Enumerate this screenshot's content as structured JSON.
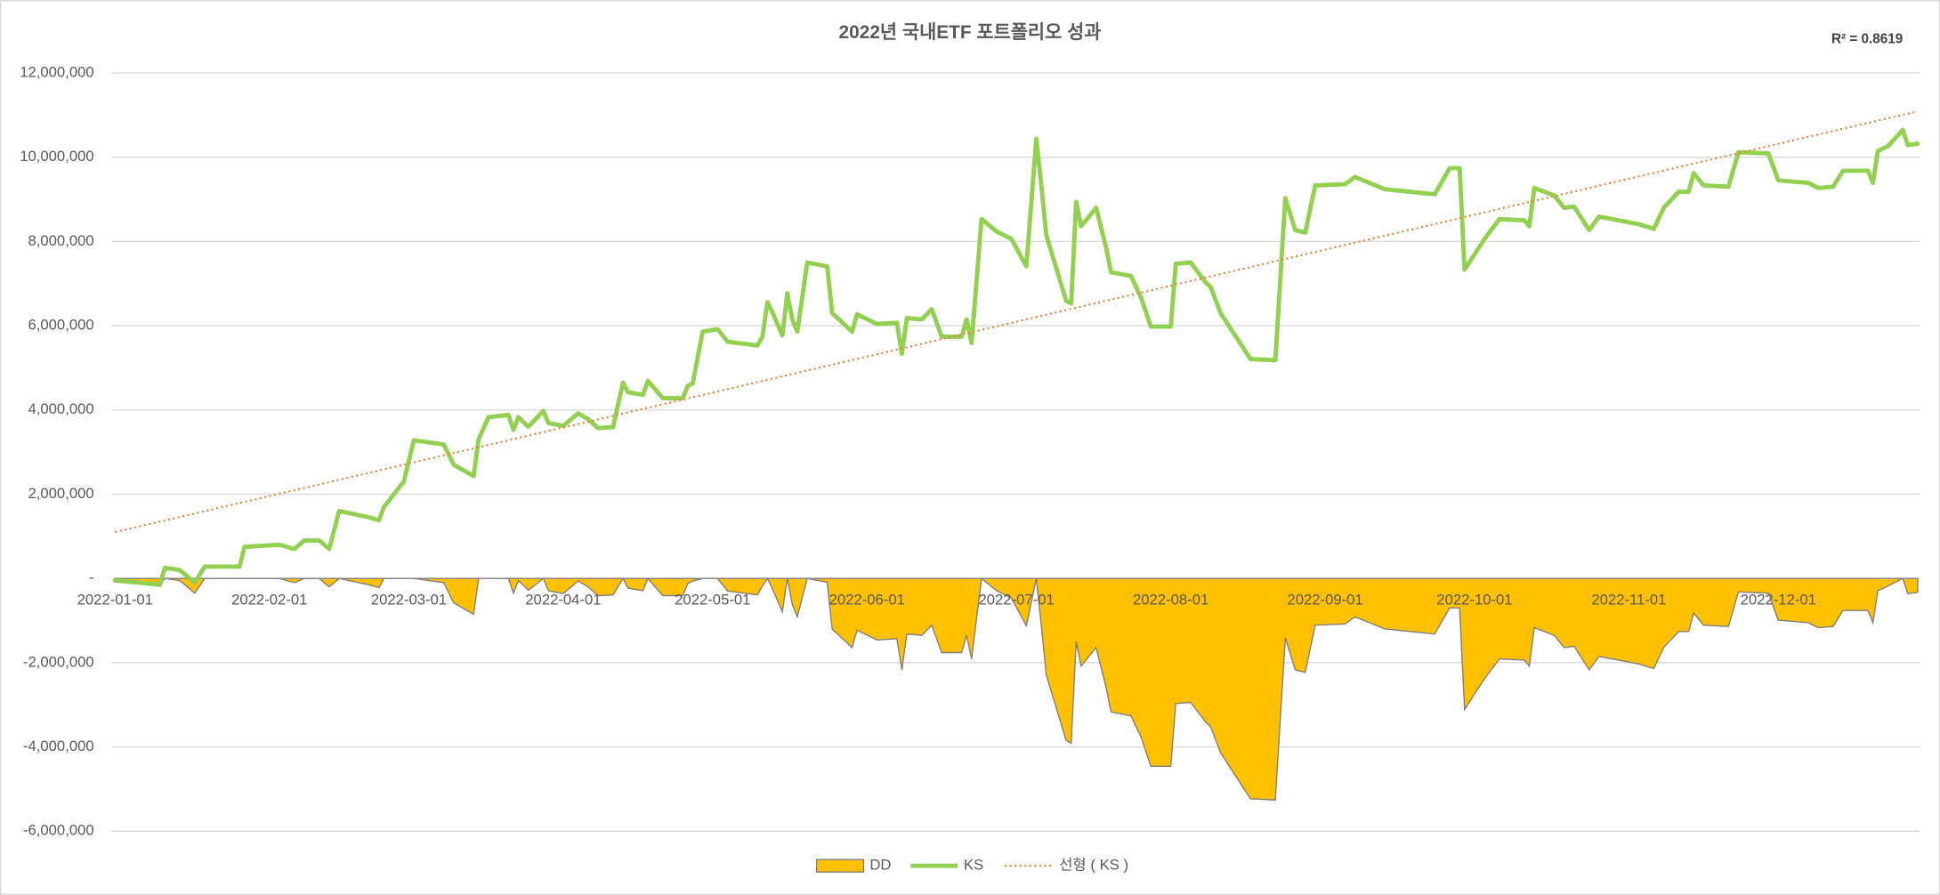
{
  "chart_data": {
    "type": "line",
    "title": "2022년 국내ETF 포트폴리오 성과",
    "annotation": "R² = 0.8619",
    "grid": true,
    "legend": "bottom",
    "xlim": [
      "2022-01-01",
      "2022-12-29"
    ],
    "xticks": [
      "2022-01-01",
      "2022-02-01",
      "2022-03-01",
      "2022-04-01",
      "2022-05-01",
      "2022-06-01",
      "2022-07-01",
      "2022-08-01",
      "2022-09-01",
      "2022-10-01",
      "2022-11-01",
      "2022-12-01"
    ],
    "ylim": [
      -6000000,
      12000000
    ],
    "yticks": [
      {
        "value": 12000000,
        "label": "12,000,000"
      },
      {
        "value": 10000000,
        "label": "10,000,000"
      },
      {
        "value": 8000000,
        "label": "8,000,000"
      },
      {
        "value": 6000000,
        "label": "6,000,000"
      },
      {
        "value": 4000000,
        "label": "4,000,000"
      },
      {
        "value": 2000000,
        "label": "2,000,000"
      },
      {
        "value": 0,
        "label": "-"
      },
      {
        "value": -2000000,
        "label": "-2,000,000"
      },
      {
        "value": -4000000,
        "label": "-4,000,000"
      },
      {
        "value": -6000000,
        "label": "-6,000,000"
      }
    ],
    "x": [
      "2022-01-01",
      "2022-01-06",
      "2022-01-10",
      "2022-01-11",
      "2022-01-14",
      "2022-01-17",
      "2022-01-19",
      "2022-01-26",
      "2022-01-27",
      "2022-02-03",
      "2022-02-06",
      "2022-02-08",
      "2022-02-11",
      "2022-02-13",
      "2022-02-15",
      "2022-02-21",
      "2022-02-23",
      "2022-02-24",
      "2022-02-26",
      "2022-02-28",
      "2022-03-02",
      "2022-03-08",
      "2022-03-10",
      "2022-03-14",
      "2022-03-15",
      "2022-03-17",
      "2022-03-21",
      "2022-03-22",
      "2022-03-23",
      "2022-03-25",
      "2022-03-28",
      "2022-03-29",
      "2022-04-01",
      "2022-04-04",
      "2022-04-06",
      "2022-04-08",
      "2022-04-11",
      "2022-04-13",
      "2022-04-14",
      "2022-04-17",
      "2022-04-18",
      "2022-04-21",
      "2022-04-25",
      "2022-04-26",
      "2022-04-27",
      "2022-04-29",
      "2022-05-02",
      "2022-05-04",
      "2022-05-10",
      "2022-05-11",
      "2022-05-12",
      "2022-05-13",
      "2022-05-15",
      "2022-05-16",
      "2022-05-17",
      "2022-05-18",
      "2022-05-20",
      "2022-05-24",
      "2022-05-25",
      "2022-05-29",
      "2022-05-30",
      "2022-06-03",
      "2022-06-07",
      "2022-06-08",
      "2022-06-09",
      "2022-06-12",
      "2022-06-14",
      "2022-06-16",
      "2022-06-20",
      "2022-06-21",
      "2022-06-22",
      "2022-06-24",
      "2022-06-27",
      "2022-06-30",
      "2022-07-03",
      "2022-07-05",
      "2022-07-06",
      "2022-07-07",
      "2022-07-11",
      "2022-07-12",
      "2022-07-13",
      "2022-07-14",
      "2022-07-17",
      "2022-07-19",
      "2022-07-20",
      "2022-07-24",
      "2022-07-26",
      "2022-07-28",
      "2022-08-01",
      "2022-08-02",
      "2022-08-05",
      "2022-08-08",
      "2022-08-09",
      "2022-08-11",
      "2022-08-17",
      "2022-08-22",
      "2022-08-24",
      "2022-08-26",
      "2022-08-28",
      "2022-08-30",
      "2022-09-05",
      "2022-09-07",
      "2022-09-13",
      "2022-09-23",
      "2022-09-26",
      "2022-09-28",
      "2022-09-29",
      "2022-10-03",
      "2022-10-06",
      "2022-10-11",
      "2022-10-12",
      "2022-10-13",
      "2022-10-17",
      "2022-10-19",
      "2022-10-21",
      "2022-10-24",
      "2022-10-26",
      "2022-11-03",
      "2022-11-06",
      "2022-11-08",
      "2022-11-11",
      "2022-11-13",
      "2022-11-14",
      "2022-11-16",
      "2022-11-21",
      "2022-11-23",
      "2022-11-29",
      "2022-12-01",
      "2022-12-07",
      "2022-12-09",
      "2022-12-12",
      "2022-12-14",
      "2022-12-19",
      "2022-12-20",
      "2022-12-21",
      "2022-12-23",
      "2022-12-26",
      "2022-12-27",
      "2022-12-29"
    ],
    "series": [
      {
        "name": "DD",
        "type": "area",
        "color": "#ffc000",
        "edge_color": "#7f7f7f",
        "values": [
          -50000,
          -100000,
          -150000,
          0,
          -50000,
          -350000,
          0,
          0,
          0,
          0,
          -100000,
          0,
          0,
          -200000,
          0,
          -150000,
          -220000,
          0,
          0,
          0,
          0,
          -100000,
          -580000,
          -850000,
          0,
          0,
          0,
          -350000,
          -50000,
          -280000,
          0,
          -290000,
          -360000,
          -60000,
          -200000,
          -410000,
          -390000,
          0,
          -230000,
          -290000,
          0,
          -410000,
          -410000,
          -120000,
          -60000,
          0,
          0,
          -300000,
          -390000,
          -180000,
          0,
          -240000,
          -790000,
          0,
          -620000,
          -910000,
          0,
          -90000,
          -1200000,
          -1640000,
          -1230000,
          -1460000,
          -1430000,
          -2170000,
          -1320000,
          -1350000,
          -1110000,
          -1760000,
          -1760000,
          -1350000,
          -1910000,
          0,
          -290000,
          -470000,
          -1120000,
          0,
          -1110000,
          -2290000,
          -3850000,
          -3910000,
          -1500000,
          -2080000,
          -1640000,
          -2580000,
          -3170000,
          -3260000,
          -3760000,
          -4460000,
          -4460000,
          -2970000,
          -2940000,
          -3410000,
          -3520000,
          -4140000,
          -5230000,
          -5260000,
          -1410000,
          -2170000,
          -2230000,
          -1110000,
          -1080000,
          -910000,
          -1200000,
          -1320000,
          -700000,
          -700000,
          -3110000,
          -2380000,
          -1910000,
          -1940000,
          -2080000,
          -1170000,
          -1350000,
          -1640000,
          -1610000,
          -2170000,
          -1850000,
          -2030000,
          -2140000,
          -1640000,
          -1260000,
          -1260000,
          -820000,
          -1110000,
          -1140000,
          -320000,
          -350000,
          -990000,
          -1050000,
          -1170000,
          -1140000,
          -760000,
          -760000,
          -1050000,
          -290000,
          -180000,
          0,
          -360000,
          -330000
        ]
      },
      {
        "name": "KS",
        "type": "line",
        "color": "#92d050",
        "values": [
          -50000,
          -100000,
          -150000,
          250000,
          200000,
          -100000,
          280000,
          280000,
          750000,
          800000,
          700000,
          900000,
          900000,
          700000,
          1600000,
          1450000,
          1380000,
          1700000,
          2000000,
          2300000,
          3280000,
          3180000,
          2700000,
          2430000,
          3300000,
          3830000,
          3880000,
          3530000,
          3830000,
          3600000,
          3980000,
          3690000,
          3620000,
          3920000,
          3780000,
          3570000,
          3590000,
          4650000,
          4420000,
          4360000,
          4690000,
          4280000,
          4280000,
          4570000,
          4630000,
          5860000,
          5920000,
          5620000,
          5530000,
          5740000,
          6560000,
          6320000,
          5770000,
          6770000,
          6150000,
          5860000,
          7500000,
          7410000,
          6300000,
          5860000,
          6270000,
          6040000,
          6070000,
          5330000,
          6180000,
          6150000,
          6390000,
          5740000,
          5740000,
          6150000,
          5590000,
          8530000,
          8240000,
          8060000,
          7410000,
          10440000,
          9330000,
          8150000,
          6590000,
          6530000,
          8940000,
          8360000,
          8800000,
          7860000,
          7270000,
          7180000,
          6680000,
          5980000,
          5980000,
          7470000,
          7500000,
          7030000,
          6920000,
          6300000,
          5210000,
          5180000,
          9030000,
          8270000,
          8210000,
          9330000,
          9360000,
          9530000,
          9240000,
          9120000,
          9740000,
          9740000,
          7330000,
          8060000,
          8530000,
          8500000,
          8360000,
          9270000,
          9090000,
          8800000,
          8830000,
          8270000,
          8590000,
          8410000,
          8300000,
          8800000,
          9180000,
          9180000,
          9620000,
          9330000,
          9300000,
          10120000,
          10090000,
          9450000,
          9390000,
          9270000,
          9300000,
          9680000,
          9680000,
          9390000,
          10150000,
          10260000,
          10650000,
          10290000,
          10320000
        ]
      }
    ],
    "trendline": {
      "name": "선형 ( KS )",
      "color": "#ed7d31",
      "x": [
        "2022-01-01",
        "2022-12-29"
      ],
      "values": [
        1100000,
        11090000
      ]
    }
  }
}
